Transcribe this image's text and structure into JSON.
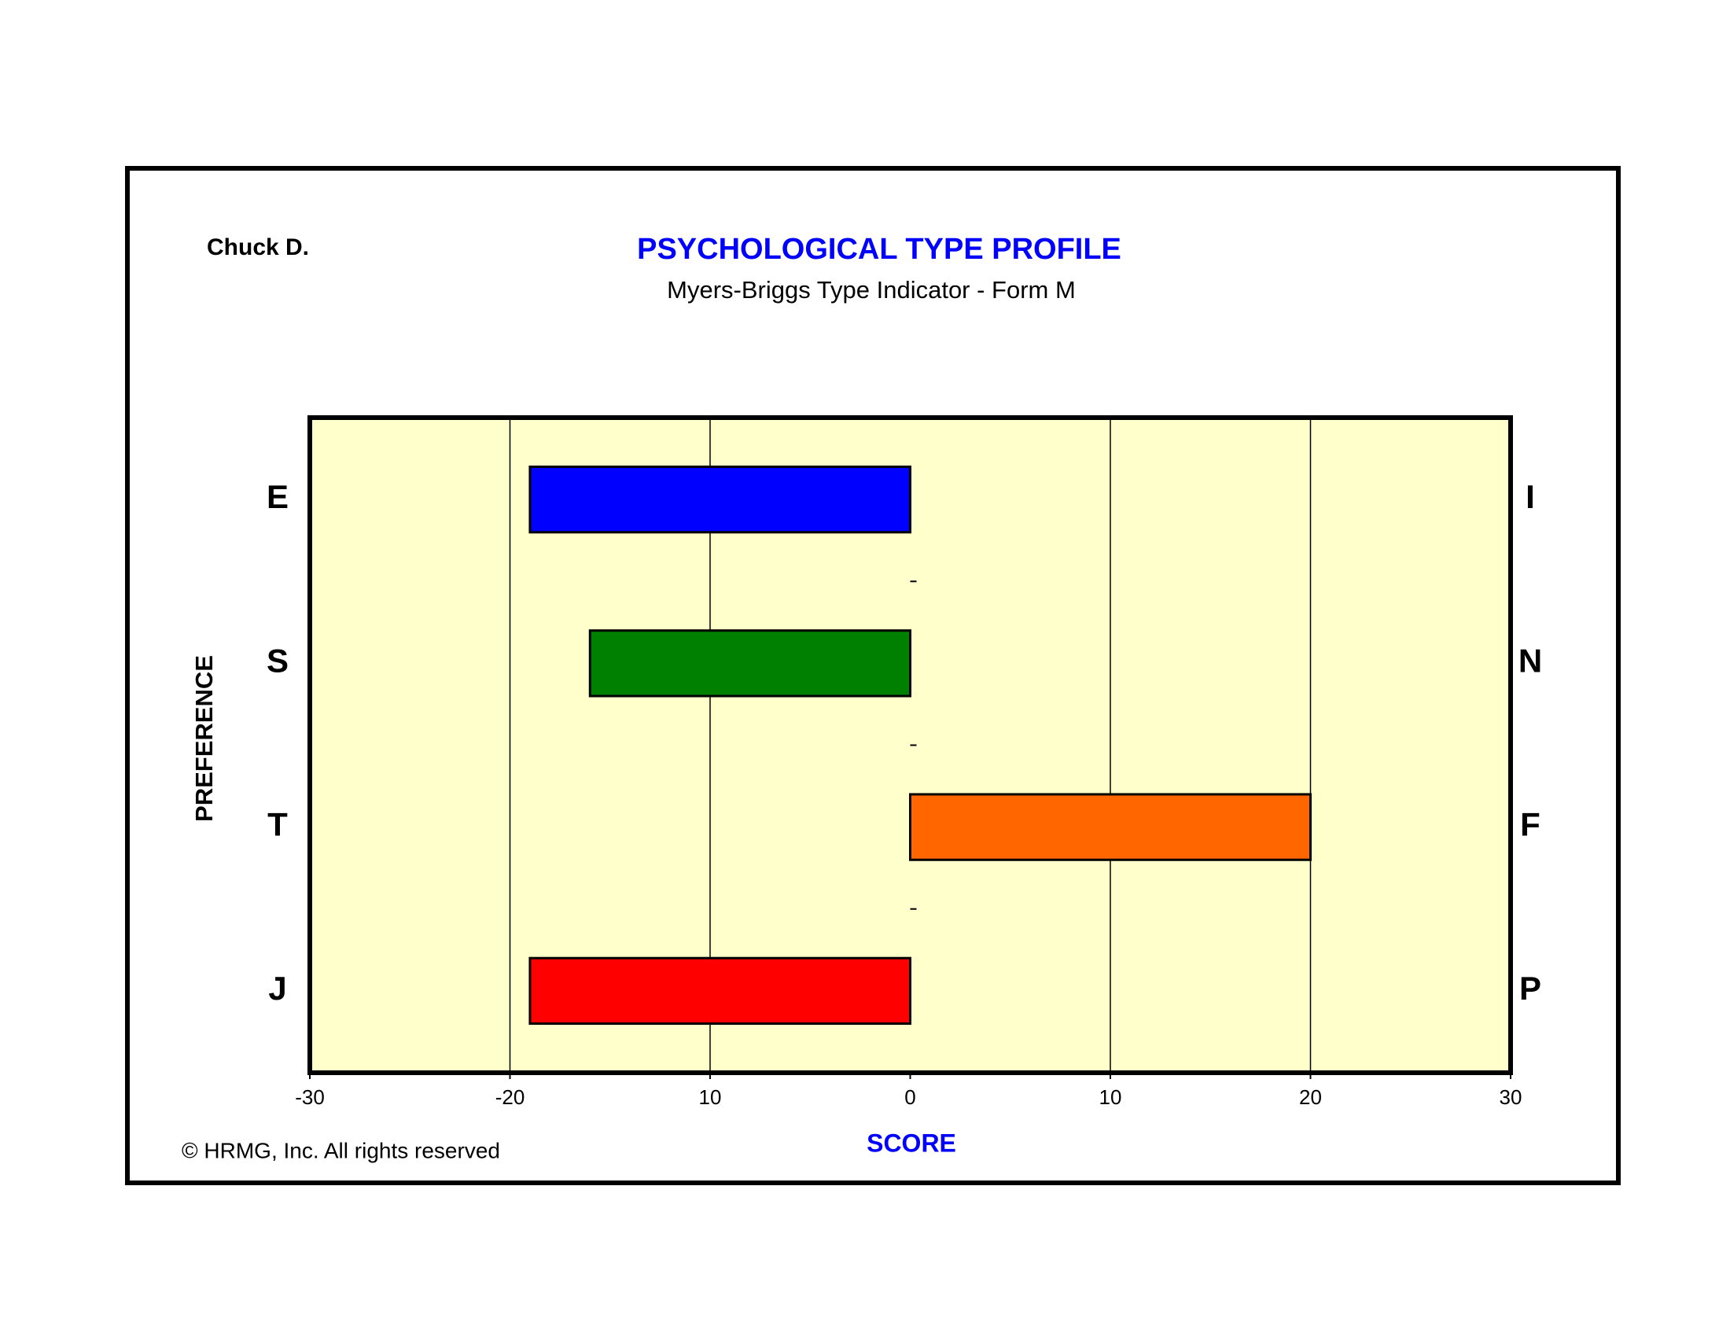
{
  "chart_data": {
    "type": "bar",
    "orientation": "horizontal",
    "name": "Chuck D.",
    "title": "PSYCHOLOGICAL TYPE PROFILE",
    "subtitle": "Myers-Briggs Type Indicator - Form M",
    "ylabel": "PREFERENCE",
    "xlabel": "SCORE",
    "footer": "© HRMG, Inc.  All rights reserved",
    "categories": [
      "E",
      "S",
      "T",
      "J"
    ],
    "opposite_categories": [
      "I",
      "N",
      "F",
      "P"
    ],
    "values": [
      -19,
      -16,
      20,
      -19
    ],
    "colors": [
      "#0000ff",
      "#008000",
      "#ff6600",
      "#ff0000"
    ],
    "xlim": [
      -30,
      30
    ],
    "xticks": [
      -30,
      -20,
      {
        "value": -10,
        "label": "10"
      },
      0,
      10,
      20,
      30
    ],
    "grid": true,
    "plot_background": "#ffffcc"
  }
}
